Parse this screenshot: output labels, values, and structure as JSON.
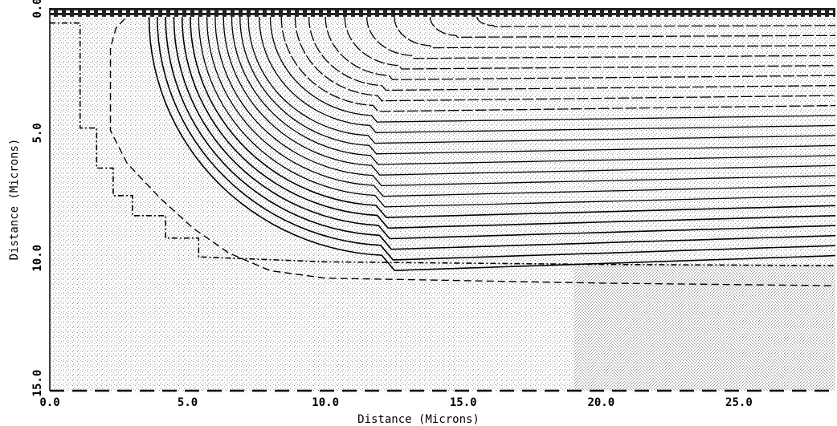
{
  "chart_data": {
    "type": "contour",
    "title": "",
    "xlabel": "Distance (Microns)",
    "ylabel": "Distance (Microns)",
    "xlim": [
      0,
      28.5
    ],
    "ylim": [
      15.3,
      0
    ],
    "x_ticks": [
      {
        "value": 0,
        "label": "0.0"
      },
      {
        "value": 5,
        "label": "5.0"
      },
      {
        "value": 10,
        "label": "10.0"
      },
      {
        "value": 15,
        "label": "15.0"
      },
      {
        "value": 20,
        "label": "20.0"
      },
      {
        "value": 25,
        "label": "25.0"
      }
    ],
    "y_ticks": [
      {
        "value": 0,
        "label": "0.0"
      },
      {
        "value": 5,
        "label": "5.0"
      },
      {
        "value": 10,
        "label": "10.0"
      },
      {
        "value": 15,
        "label": "15.0"
      }
    ],
    "grid": false,
    "legend": "none",
    "colors": {
      "line": "#000000",
      "background": "#ffffff",
      "stipple": "#9a9a9a"
    },
    "contours": [
      {
        "style": "solid",
        "depth_at_right": 9.9,
        "corner_x": 3.6
      },
      {
        "style": "solid",
        "depth_at_right": 9.5,
        "corner_x": 3.9
      },
      {
        "style": "solid",
        "depth_at_right": 9.1,
        "corner_x": 4.2
      },
      {
        "style": "solid",
        "depth_at_right": 8.7,
        "corner_x": 4.5
      },
      {
        "style": "solid",
        "depth_at_right": 8.3,
        "corner_x": 4.8
      },
      {
        "style": "solid",
        "depth_at_right": 7.9,
        "corner_x": 5.1
      },
      {
        "style": "solid",
        "depth_at_right": 7.5,
        "corner_x": 5.4
      },
      {
        "style": "solid",
        "depth_at_right": 7.1,
        "corner_x": 5.7
      },
      {
        "style": "solid",
        "depth_at_right": 6.7,
        "corner_x": 6.0
      },
      {
        "style": "solid",
        "depth_at_right": 6.3,
        "corner_x": 6.3
      },
      {
        "style": "solid",
        "depth_at_right": 5.9,
        "corner_x": 6.6
      },
      {
        "style": "solid",
        "depth_at_right": 5.5,
        "corner_x": 6.9
      },
      {
        "style": "solid",
        "depth_at_right": 5.1,
        "corner_x": 7.2
      },
      {
        "style": "solid",
        "depth_at_right": 4.7,
        "corner_x": 7.6
      },
      {
        "style": "solid",
        "depth_at_right": 4.3,
        "corner_x": 8.0
      },
      {
        "style": "solid",
        "depth_at_right": 3.9,
        "corner_x": 8.4
      },
      {
        "style": "solid",
        "depth_at_right": 3.5,
        "corner_x": 8.9
      },
      {
        "style": "solid",
        "depth_at_right": 3.1,
        "corner_x": 9.4
      },
      {
        "style": "solid",
        "depth_at_right": 2.7,
        "corner_x": 10.0
      },
      {
        "style": "solid",
        "depth_at_right": 2.3,
        "corner_x": 10.7
      },
      {
        "style": "solid",
        "depth_at_right": 1.9,
        "corner_x": 11.5
      },
      {
        "style": "solid",
        "depth_at_right": 1.5,
        "corner_x": 12.5
      },
      {
        "style": "solid",
        "depth_at_right": 1.1,
        "corner_x": 13.8
      },
      {
        "style": "solid",
        "depth_at_right": 0.7,
        "corner_x": 15.5
      }
    ],
    "junction_boundary": {
      "style": "dash-dot",
      "points": [
        [
          0.0,
          0.6
        ],
        [
          1.1,
          0.6
        ],
        [
          1.1,
          4.8
        ],
        [
          1.7,
          4.8
        ],
        [
          1.7,
          6.4
        ],
        [
          2.3,
          6.4
        ],
        [
          2.3,
          7.5
        ],
        [
          3.0,
          7.5
        ],
        [
          3.0,
          8.3
        ],
        [
          4.2,
          8.3
        ],
        [
          4.2,
          9.2
        ],
        [
          5.4,
          9.2
        ],
        [
          5.4,
          9.95
        ],
        [
          10.0,
          10.15
        ],
        [
          15.0,
          10.2
        ],
        [
          20.0,
          10.25
        ],
        [
          28.5,
          10.3
        ]
      ]
    },
    "outer_boundary": {
      "style": "dashed",
      "points": [
        [
          3.0,
          0.1
        ],
        [
          2.4,
          0.8
        ],
        [
          2.2,
          1.6
        ],
        [
          2.2,
          4.9
        ],
        [
          2.8,
          6.2
        ],
        [
          4.0,
          7.6
        ],
        [
          5.2,
          8.8
        ],
        [
          6.5,
          9.8
        ],
        [
          8.0,
          10.5
        ],
        [
          10.0,
          10.8
        ],
        [
          15.0,
          10.9
        ],
        [
          20.0,
          11.0
        ],
        [
          28.5,
          11.1
        ]
      ]
    },
    "surface_band": {
      "y_from": 0.0,
      "y_to": 0.35,
      "x_from": 0.0,
      "x_to": 28.5
    }
  }
}
